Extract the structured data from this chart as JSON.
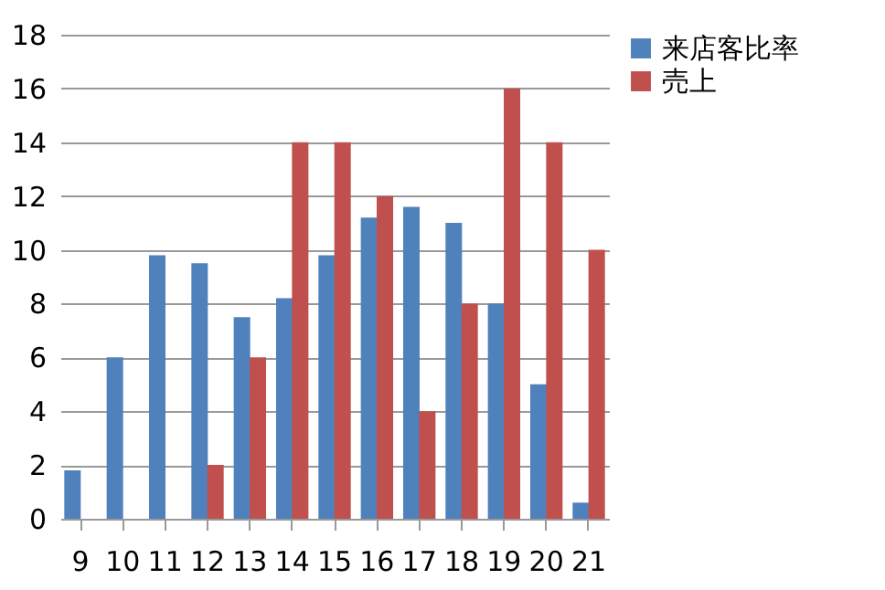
{
  "chart_data": {
    "type": "bar",
    "categories": [
      "9",
      "10",
      "11",
      "12",
      "13",
      "14",
      "15",
      "16",
      "17",
      "18",
      "19",
      "20",
      "21"
    ],
    "series": [
      {
        "name": "来店客比率",
        "color": "#4f81bd",
        "values": [
          1.8,
          6,
          9.8,
          9.5,
          7.5,
          8.2,
          9.8,
          11.2,
          11.6,
          11,
          8,
          5,
          0.6
        ]
      },
      {
        "name": "売上",
        "color": "#c0504d",
        "values": [
          null,
          null,
          null,
          2,
          6,
          14,
          14,
          12,
          4,
          8,
          16,
          14,
          10
        ]
      }
    ],
    "ylim": [
      0,
      18
    ],
    "yticks": [
      0,
      2,
      4,
      6,
      8,
      10,
      12,
      14,
      16,
      18
    ],
    "grid": "y",
    "legend": "right"
  }
}
